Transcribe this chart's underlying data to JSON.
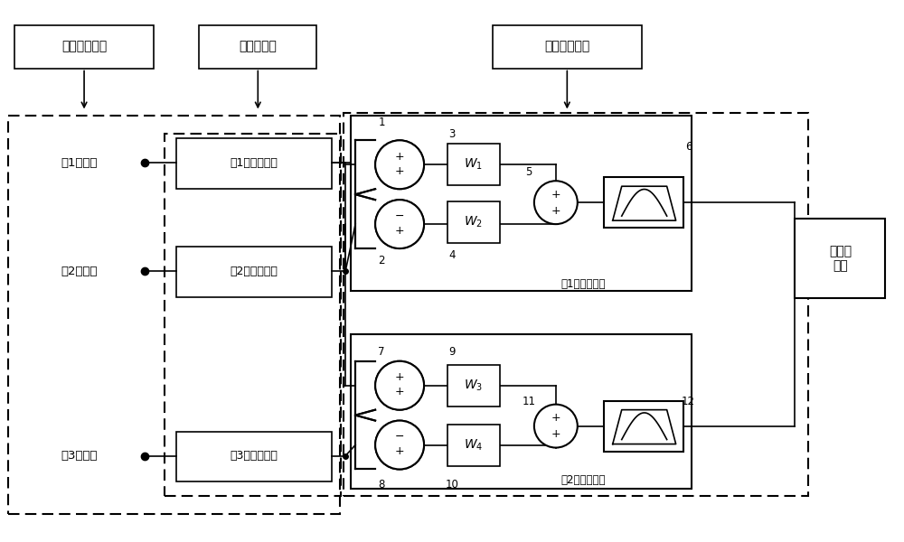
{
  "bg_color": "#ffffff",
  "line_color": "#000000",
  "text_color": "#000000",
  "fig_width": 10.0,
  "fig_height": 6.0,
  "labels": {
    "mic_array": "传声器线阵列",
    "preprocess": "预处理模块",
    "spatial_filter": "空间滤波模块",
    "post_process": "后处理\n模块",
    "mic1": "第1传声器",
    "mic2": "第2传声器",
    "mic3": "第3传声器",
    "spec1": "第1频谱分析器",
    "spec2": "第2频谱分析器",
    "spec3": "第3频谱分析器",
    "filter1_label": "第1空间滤波器",
    "filter2_label": "第2空间滤波器",
    "W1": "$W_1$",
    "W2": "$W_2$",
    "W3": "$W_3$",
    "W4": "$W_4$",
    "numbers": [
      "1",
      "2",
      "3",
      "4",
      "5",
      "6",
      "7",
      "8",
      "9",
      "10",
      "11",
      "12"
    ]
  }
}
